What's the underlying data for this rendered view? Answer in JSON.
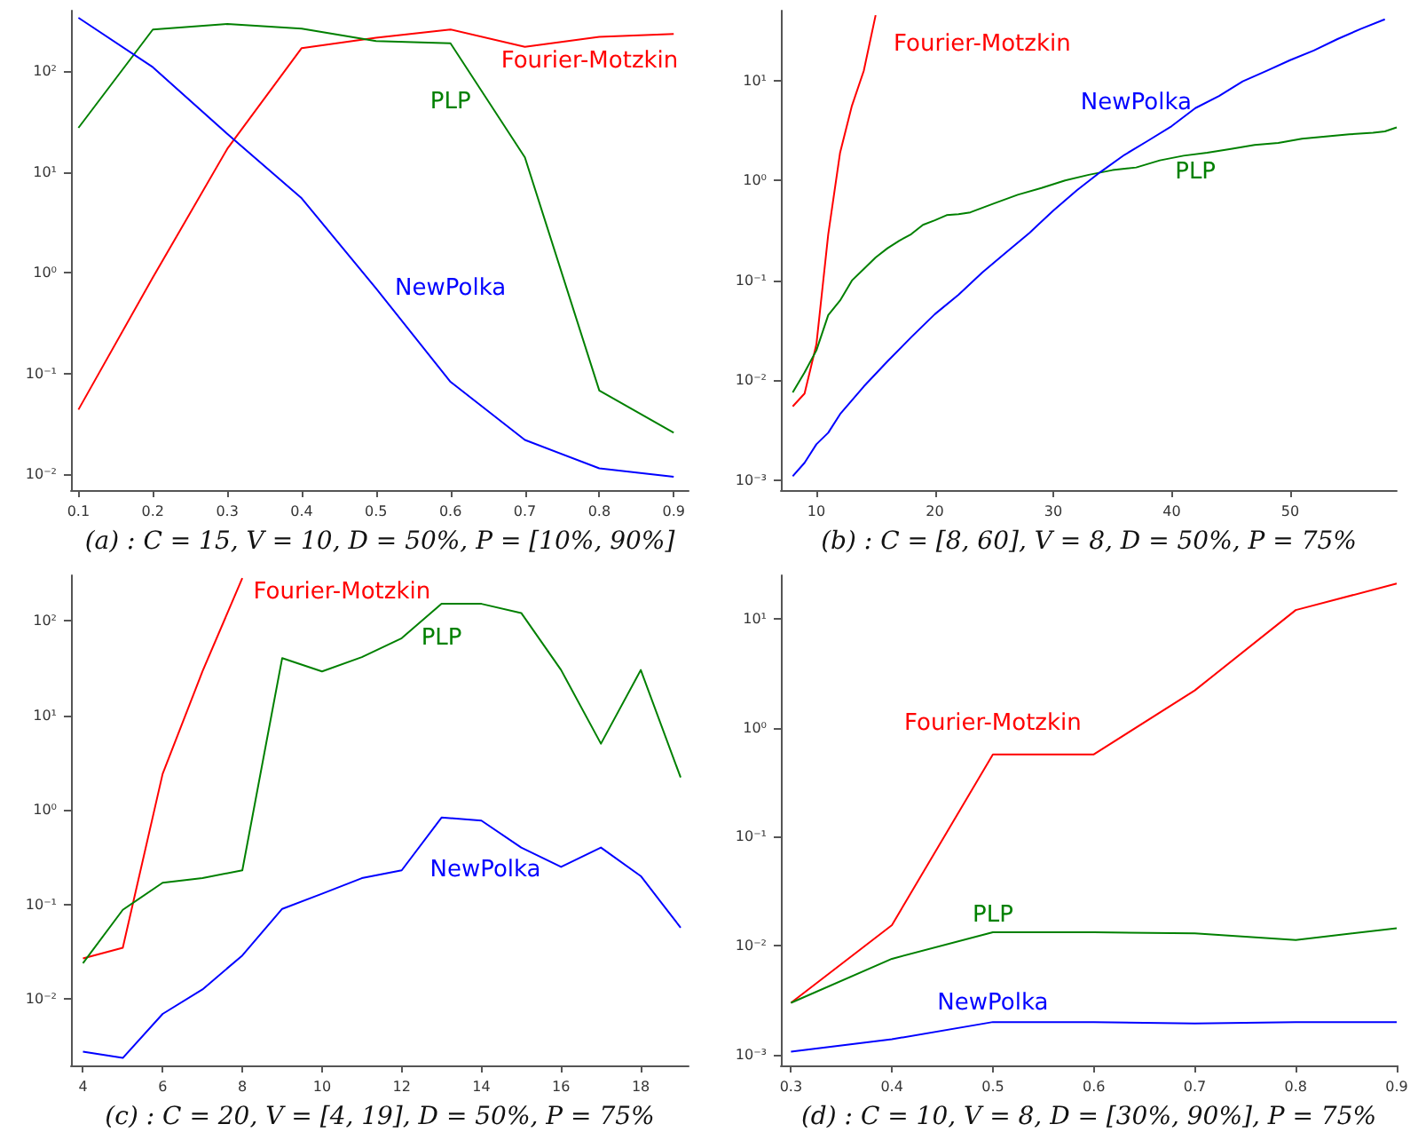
{
  "chart_data": [
    {
      "type": "line",
      "xlabel": "(a) : C = 15, V = 10, D = 50%, P = [10%, 90%]",
      "x": [
        0.1,
        0.2,
        0.3,
        0.4,
        0.5,
        0.6,
        0.7,
        0.8,
        0.9
      ],
      "series": [
        {
          "name": "Fourier-Motzkin",
          "color": "#ff0000",
          "values": [
            0.044,
            0.9,
            17,
            170,
            215,
            260,
            175,
            220,
            235
          ]
        },
        {
          "name": "PLP",
          "color": "#008000",
          "values": [
            27.5,
            260,
            295,
            265,
            200,
            190,
            14,
            0.068,
            0.026
          ]
        },
        {
          "name": "NewPolka",
          "color": "#0000ff",
          "values": [
            340,
            110,
            24,
            5.5,
            0.7,
            0.083,
            0.022,
            0.0115,
            0.0095
          ]
        }
      ],
      "xlim": [
        0.09,
        0.92
      ],
      "xticks": [
        0.1,
        0.2,
        0.3,
        0.4,
        0.5,
        0.6,
        0.7,
        0.8,
        0.9
      ],
      "ylim": [
        0.007,
        400
      ],
      "yticks": [
        {
          "value": 0.01,
          "label": "10⁻²"
        },
        {
          "value": 0.1,
          "label": "10⁻¹"
        },
        {
          "value": 1,
          "label": "10⁰"
        },
        {
          "value": 10,
          "label": "10¹"
        },
        {
          "value": 100,
          "label": "10²"
        }
      ],
      "log": "y",
      "grid": false,
      "legend": false,
      "marker": "none"
    },
    {
      "type": "line",
      "xlabel": "(b) : C = [8, 60], V = 8, D = 50%, P = 75%",
      "series": [
        {
          "name": "Fourier-Motzkin",
          "color": "#ff0000",
          "x": [
            8,
            9,
            10,
            11,
            12,
            13,
            14,
            15
          ],
          "values": [
            0.0055,
            0.0074,
            0.023,
            0.29,
            1.9,
            5.6,
            12.5,
            45
          ]
        },
        {
          "name": "PLP",
          "color": "#008000",
          "x": [
            8,
            9,
            10,
            11,
            12,
            13,
            14,
            15,
            16,
            17,
            18,
            19,
            20,
            21,
            22,
            23,
            25,
            27,
            29,
            31,
            33,
            35,
            37,
            39,
            41,
            43,
            45,
            47,
            49,
            51,
            53,
            55,
            57,
            58,
            59
          ],
          "values": [
            0.0076,
            0.012,
            0.02,
            0.045,
            0.063,
            0.1,
            0.13,
            0.17,
            0.21,
            0.25,
            0.29,
            0.36,
            0.4,
            0.45,
            0.46,
            0.48,
            0.59,
            0.72,
            0.84,
            1.0,
            1.14,
            1.27,
            1.35,
            1.59,
            1.77,
            1.9,
            2.07,
            2.27,
            2.37,
            2.62,
            2.76,
            2.9,
            3.0,
            3.1,
            3.4
          ]
        },
        {
          "name": "NewPolka",
          "color": "#0000ff",
          "x": [
            8,
            9,
            10,
            11,
            12,
            14,
            16,
            18,
            20,
            22,
            24,
            26,
            28,
            30,
            32,
            34,
            36,
            38,
            40,
            42,
            44,
            46,
            48,
            50,
            52,
            54,
            56,
            58
          ],
          "values": [
            0.0011,
            0.0015,
            0.0023,
            0.003,
            0.0046,
            0.0087,
            0.0155,
            0.027,
            0.046,
            0.072,
            0.12,
            0.19,
            0.3,
            0.5,
            0.8,
            1.22,
            1.8,
            2.5,
            3.5,
            5.3,
            7.0,
            9.8,
            12.5,
            16,
            20,
            26,
            33,
            41
          ]
        }
      ],
      "xlim": [
        7,
        59
      ],
      "xticks": [
        10,
        20,
        30,
        40,
        50
      ],
      "ylim": [
        0.0008,
        50
      ],
      "yticks": [
        {
          "value": 0.001,
          "label": "10⁻³"
        },
        {
          "value": 0.01,
          "label": "10⁻²"
        },
        {
          "value": 0.1,
          "label": "10⁻¹"
        },
        {
          "value": 1,
          "label": "10⁰"
        },
        {
          "value": 10,
          "label": "10¹"
        }
      ],
      "log": "y",
      "grid": false,
      "legend": false,
      "marker": "none"
    },
    {
      "type": "line",
      "xlabel": "(c) : C = 20, V = [4, 19], D = 50%, P = 75%",
      "series": [
        {
          "name": "Fourier-Motzkin",
          "color": "#ff0000",
          "x": [
            4,
            5,
            6,
            7,
            8
          ],
          "values": [
            0.027,
            0.035,
            2.4,
            29,
            280
          ]
        },
        {
          "name": "PLP",
          "color": "#008000",
          "x": [
            4,
            5,
            6,
            7,
            8,
            9,
            10,
            11,
            12,
            13,
            14,
            15,
            16,
            17,
            18,
            19
          ],
          "values": [
            0.024,
            0.088,
            0.17,
            0.19,
            0.23,
            40,
            29,
            41,
            65,
            150,
            150,
            120,
            30,
            5.0,
            30,
            2.2
          ]
        },
        {
          "name": "NewPolka",
          "color": "#0000ff",
          "x": [
            4,
            5,
            6,
            7,
            8,
            9,
            10,
            11,
            12,
            13,
            14,
            15,
            16,
            17,
            18,
            19
          ],
          "values": [
            0.0028,
            0.0024,
            0.007,
            0.0127,
            0.029,
            0.09,
            0.13,
            0.19,
            0.23,
            0.83,
            0.77,
            0.4,
            0.25,
            0.4,
            0.2,
            0.057
          ]
        }
      ],
      "xlim": [
        3.7,
        19.2
      ],
      "xticks": [
        4,
        6,
        8,
        10,
        12,
        14,
        16,
        18
      ],
      "ylim": [
        0.002,
        300
      ],
      "yticks": [
        {
          "value": 0.01,
          "label": "10⁻²"
        },
        {
          "value": 0.1,
          "label": "10⁻¹"
        },
        {
          "value": 1,
          "label": "10⁰"
        },
        {
          "value": 10,
          "label": "10¹"
        },
        {
          "value": 100,
          "label": "10²"
        }
      ],
      "log": "y",
      "grid": false,
      "legend": false,
      "marker": "none"
    },
    {
      "type": "line",
      "xlabel": "(d) : C = 10, V = 8, D = [30%, 90%], P = 75%",
      "x": [
        0.3,
        0.4,
        0.5,
        0.6,
        0.7,
        0.8,
        0.9
      ],
      "series": [
        {
          "name": "Fourier-Motzkin",
          "color": "#ff0000",
          "values": [
            0.003,
            0.0155,
            0.57,
            0.57,
            2.2,
            12,
            21
          ]
        },
        {
          "name": "PLP",
          "color": "#008000",
          "values": [
            0.003,
            0.0076,
            0.0133,
            0.0133,
            0.013,
            0.0113,
            0.0145
          ]
        },
        {
          "name": "NewPolka",
          "color": "#0000ff",
          "values": [
            0.00107,
            0.00139,
            0.002,
            0.002,
            0.00194,
            0.002,
            0.002
          ]
        }
      ],
      "xlim": [
        0.29,
        0.9
      ],
      "xticks": [
        0.3,
        0.4,
        0.5,
        0.6,
        0.7,
        0.8,
        0.9
      ],
      "ylim": [
        0.0008,
        25
      ],
      "yticks": [
        {
          "value": 0.001,
          "label": "10⁻³"
        },
        {
          "value": 0.01,
          "label": "10⁻²"
        },
        {
          "value": 0.1,
          "label": "10⁻¹"
        },
        {
          "value": 1,
          "label": "10⁰"
        },
        {
          "value": 10,
          "label": "10¹"
        }
      ],
      "log": "y",
      "grid": false,
      "legend": false,
      "marker": "none"
    }
  ]
}
